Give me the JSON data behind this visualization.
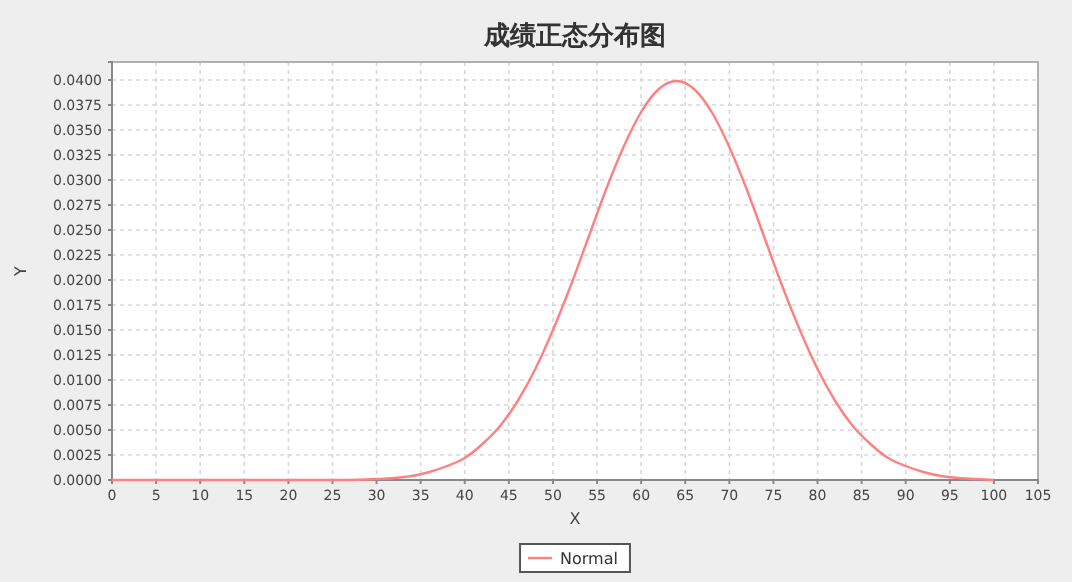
{
  "chart_data": {
    "type": "line",
    "title": "成绩正态分布图",
    "xlabel": "X",
    "ylabel": "Y",
    "x": [
      0,
      10,
      20,
      26,
      30,
      32,
      34,
      36,
      38,
      40,
      42,
      44,
      46,
      48,
      50,
      52,
      54,
      56,
      58,
      60,
      62,
      64,
      66,
      68,
      70,
      72,
      74,
      76,
      78,
      80,
      82,
      84,
      86,
      88,
      90,
      92,
      94,
      96,
      98,
      100
    ],
    "series": [
      {
        "name": "Normal",
        "color": "#ff8080",
        "values": [
          0,
          0,
          0,
          0,
          0.0001,
          0.0002,
          0.0004,
          0.0008,
          0.0014,
          0.0022,
          0.0036,
          0.0054,
          0.0079,
          0.0111,
          0.015,
          0.0194,
          0.0242,
          0.029,
          0.0333,
          0.0368,
          0.0391,
          0.0399,
          0.0391,
          0.0368,
          0.0333,
          0.029,
          0.0242,
          0.0194,
          0.015,
          0.0111,
          0.0079,
          0.0054,
          0.0036,
          0.0022,
          0.0014,
          0.0008,
          0.0004,
          0.0002,
          0.0001,
          0
        ]
      }
    ],
    "xlim": [
      0,
      105
    ],
    "xticks": [
      0,
      5,
      10,
      15,
      20,
      25,
      30,
      35,
      40,
      45,
      50,
      55,
      60,
      65,
      70,
      75,
      80,
      85,
      90,
      95,
      100,
      105
    ],
    "ylim": [
      0,
      0.0418
    ],
    "yticks": [
      {
        "value": 0,
        "label": "0.0000"
      },
      {
        "value": 0.0025,
        "label": "0.0025"
      },
      {
        "value": 0.005,
        "label": "0.0050"
      },
      {
        "value": 0.0075,
        "label": "0.0075"
      },
      {
        "value": 0.01,
        "label": "0.0100"
      },
      {
        "value": 0.0125,
        "label": "0.0125"
      },
      {
        "value": 0.015,
        "label": "0.0150"
      },
      {
        "value": 0.0175,
        "label": "0.0175"
      },
      {
        "value": 0.02,
        "label": "0.0200"
      },
      {
        "value": 0.0225,
        "label": "0.0225"
      },
      {
        "value": 0.025,
        "label": "0.0250"
      },
      {
        "value": 0.0275,
        "label": "0.0275"
      },
      {
        "value": 0.03,
        "label": "0.0300"
      },
      {
        "value": 0.0325,
        "label": "0.0325"
      },
      {
        "value": 0.035,
        "label": "0.0350"
      },
      {
        "value": 0.0375,
        "label": "0.0375"
      },
      {
        "value": 0.04,
        "label": "0.0400"
      }
    ],
    "grid": true,
    "legend": "bottom",
    "marker": "none",
    "line_style": "solid"
  }
}
